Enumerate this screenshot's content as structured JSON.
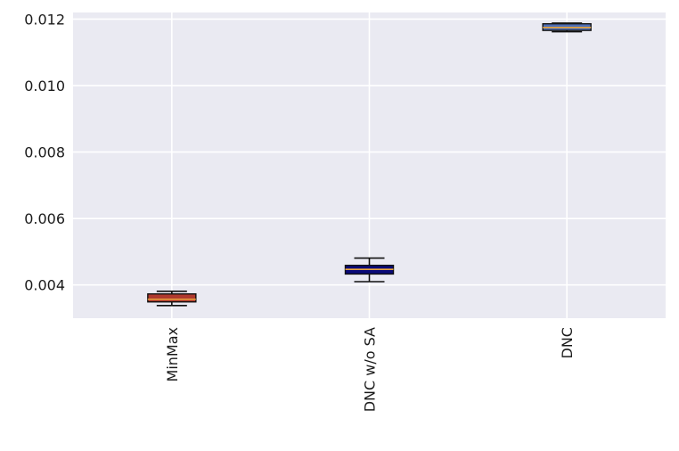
{
  "chart_data": {
    "type": "box",
    "categories": [
      "MinMax",
      "DNC w/o SA",
      "DNC"
    ],
    "series": [
      {
        "category": "MinMax",
        "whisker_low": 0.00338,
        "q1": 0.00349,
        "median": 0.00357,
        "q3": 0.00373,
        "whisker_high": 0.00381,
        "box_color": "#b03a2e",
        "median_color": "#e8a33c"
      },
      {
        "category": "DNC w/o SA",
        "whisker_low": 0.0041,
        "q1": 0.00433,
        "median": 0.00447,
        "q3": 0.00459,
        "whisker_high": 0.00481,
        "box_color": "#0a0a78",
        "median_color": "#e8a33c"
      },
      {
        "category": "DNC",
        "whisker_low": 0.01162,
        "q1": 0.01166,
        "median": 0.01175,
        "q3": 0.01186,
        "whisker_high": 0.01188,
        "box_color": "#4f6fb5",
        "median_color": "#e8a33c"
      }
    ],
    "ylim": [
      0.003,
      0.0122
    ],
    "yticks": [
      "0.004",
      "0.006",
      "0.008",
      "0.010",
      "0.012"
    ],
    "ytick_values": [
      0.004,
      0.006,
      0.008,
      0.01,
      0.012
    ],
    "xlabel": "",
    "ylabel": "",
    "title": "",
    "grid": true,
    "x_tick_rotation": "vertical",
    "background_color": "#eaeaf2",
    "grid_color": "#ffffff"
  }
}
